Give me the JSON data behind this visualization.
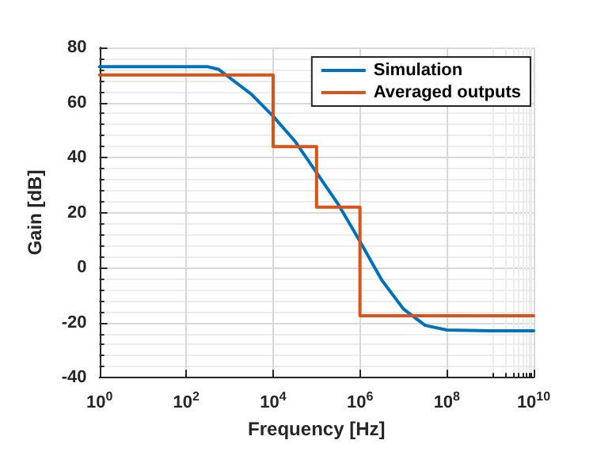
{
  "chart_data": {
    "type": "line",
    "xlabel": "Frequency [Hz]",
    "ylabel": "Gain [dB]",
    "log": "x",
    "grid": true,
    "legend": "top right",
    "line_style": "solid",
    "marker": "none",
    "xlim": [
      1,
      10000000000
    ],
    "xticks": [
      {
        "value": 1,
        "label": "10$^{0}$"
      },
      {
        "value": 100,
        "label": "10$^{2}$"
      },
      {
        "value": 10000,
        "label": "10$^{4}$"
      },
      {
        "value": 1000000,
        "label": "10$^{6}$"
      },
      {
        "value": 100000000,
        "label": "10$^{8}$"
      },
      {
        "value": 10000000000,
        "label": "10$^{10}$"
      }
    ],
    "ylim": [
      -40,
      80
    ],
    "yticks": [
      -40,
      -20,
      0,
      20,
      40,
      60,
      80
    ],
    "series": [
      {
        "name": "Simulation",
        "color": "#0072bd",
        "x": [
          1,
          10,
          100,
          316,
          562,
          1000,
          3162,
          10000,
          31623,
          100000,
          316228,
          1000000,
          3162278,
          10000000,
          31622777,
          100000000,
          1000000000,
          10000000000
        ],
        "values": [
          73,
          73,
          73,
          73,
          72,
          69,
          63,
          55,
          46,
          34.5,
          23,
          9.5,
          -4.5,
          -15,
          -21,
          -22.7,
          -23,
          -23
        ]
      },
      {
        "name": "Averaged outputs",
        "color": "#d95319",
        "type": "step",
        "x": [
          1,
          10000,
          100000,
          1000000,
          10000000000
        ],
        "values": [
          70,
          44,
          22,
          -17.5,
          -17.5
        ]
      }
    ]
  }
}
